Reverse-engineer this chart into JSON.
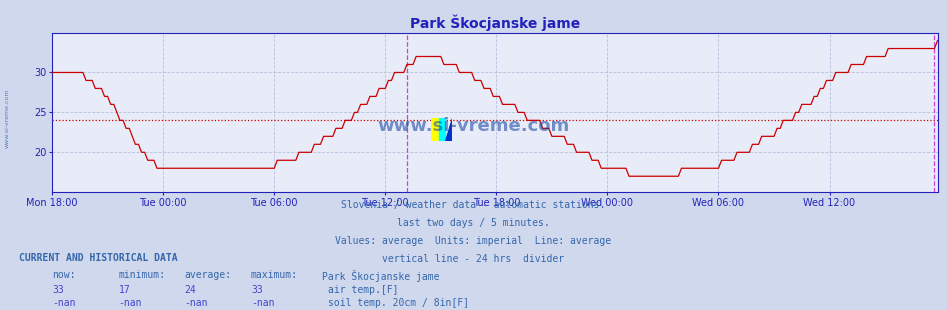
{
  "title": "Park Škocjanske jame",
  "title_color": "#2222bb",
  "title_fontsize": 10,
  "bg_color": "#d0d8ee",
  "plot_bg_color": "#e8ecf8",
  "axis_color": "#2222bb",
  "grid_color": "#b8c0dc",
  "line_color": "#cc0000",
  "average_line_color": "#cc0000",
  "average_value": 24,
  "vline_color": "#cc44cc",
  "tick_label_color": "#2222aa",
  "tick_fontsize": 7,
  "info_text_color": "#3366aa",
  "ylabel_min": 15,
  "ylabel_max": 35,
  "yticks": [
    20,
    25,
    30
  ],
  "xtick_labels": [
    "Mon 18:00",
    "Tue 00:00",
    "Tue 06:00",
    "Tue 12:00",
    "Tue 18:00",
    "Wed 00:00",
    "Wed 06:00",
    "Wed 12:00"
  ],
  "xtick_positions": [
    0,
    36,
    72,
    108,
    144,
    180,
    216,
    252
  ],
  "total_points": 288,
  "info_lines": [
    "Slovenia / weather data - automatic stations.",
    "last two days / 5 minutes.",
    "Values: average  Units: imperial  Line: average",
    "vertical line - 24 hrs  divider"
  ],
  "current_label": "CURRENT AND HISTORICAL DATA",
  "table_headers": [
    "now:",
    "minimum:",
    "average:",
    "maximum:",
    "Park Škocjanske jame"
  ],
  "row1": [
    "33",
    "17",
    "24",
    "33"
  ],
  "row1_legend_color": "#cc0000",
  "row1_label": "air temp.[F]",
  "row2": [
    "-nan",
    "-nan",
    "-nan",
    "-nan"
  ],
  "row2_legend_color": "#aa6600",
  "row2_label": "soil temp. 20cm / 8in[F]",
  "watermark": "www.si-vreme.com",
  "si_vreme_color": "#1040a0",
  "left_label": "www.si-vreme.com"
}
